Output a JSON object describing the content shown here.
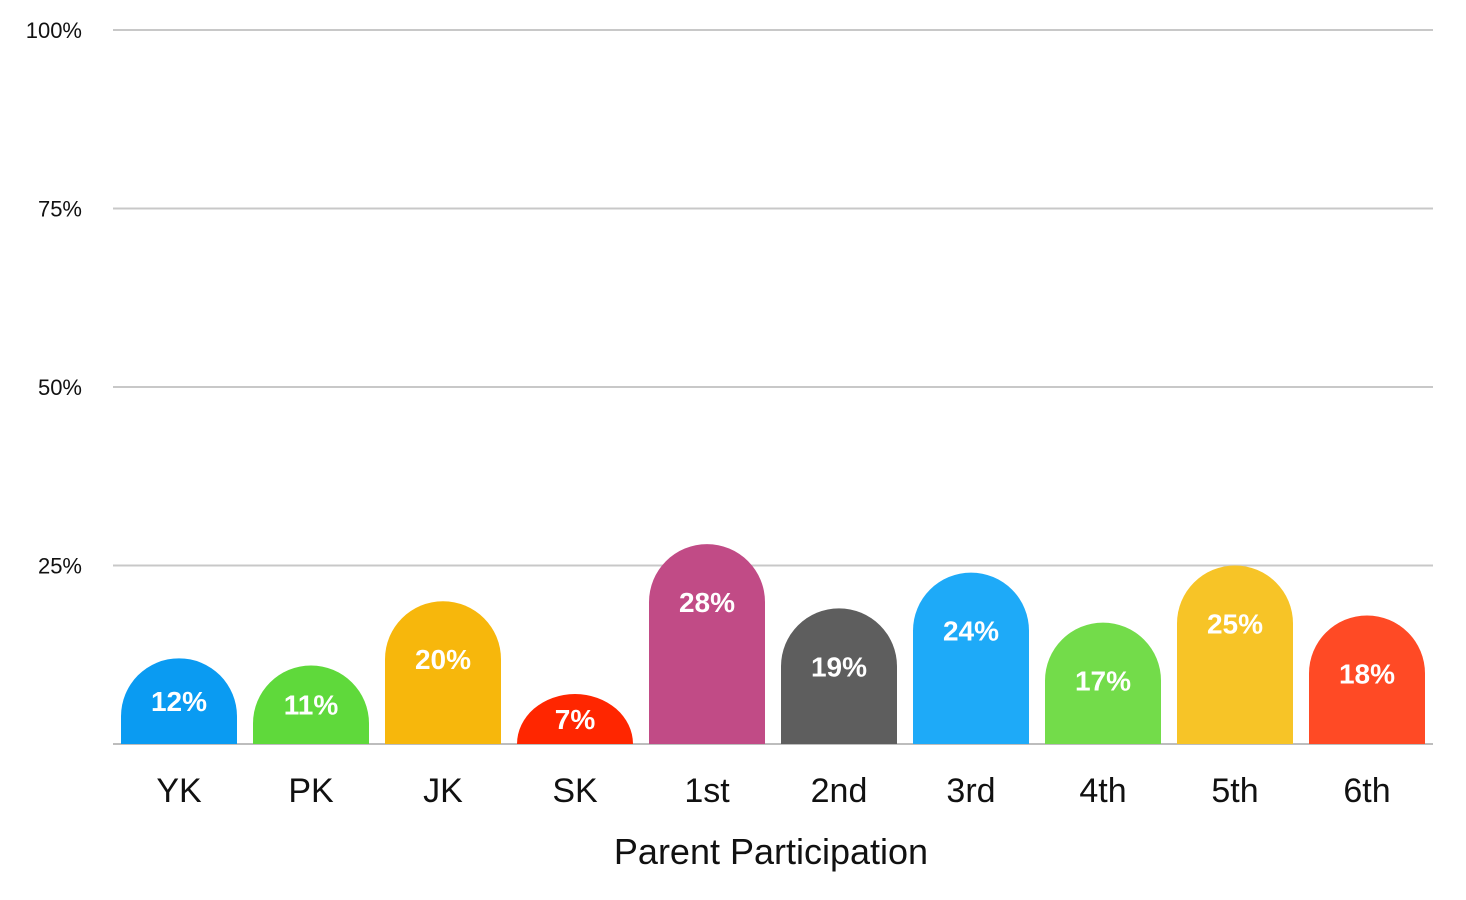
{
  "chart_data": {
    "type": "bar",
    "categories": [
      "YK",
      "PK",
      "JK",
      "SK",
      "1st",
      "2nd",
      "3rd",
      "4th",
      "5th",
      "6th"
    ],
    "values": [
      12,
      11,
      20,
      7,
      28,
      19,
      24,
      17,
      25,
      18
    ],
    "data_labels": [
      "12%",
      "11%",
      "20%",
      "7%",
      "28%",
      "19%",
      "24%",
      "17%",
      "25%",
      "18%"
    ],
    "colors": [
      "#0A9BF2",
      "#5FD93B",
      "#F7B70C",
      "#FF2600",
      "#C14B86",
      "#5E5E5E",
      "#1EAAF8",
      "#73DC4A",
      "#F7C427",
      "#FF4A25"
    ],
    "xlabel": "Parent Participation",
    "ylabel": "",
    "ylim": [
      0,
      100
    ],
    "yticks": [
      0,
      25,
      50,
      75,
      100
    ],
    "ytick_labels": [
      "",
      "25%",
      "50%",
      "75%",
      "100%"
    ],
    "grid": true,
    "gridline_color": "#C8C8C8",
    "axis_color": "#BDBDBD"
  }
}
